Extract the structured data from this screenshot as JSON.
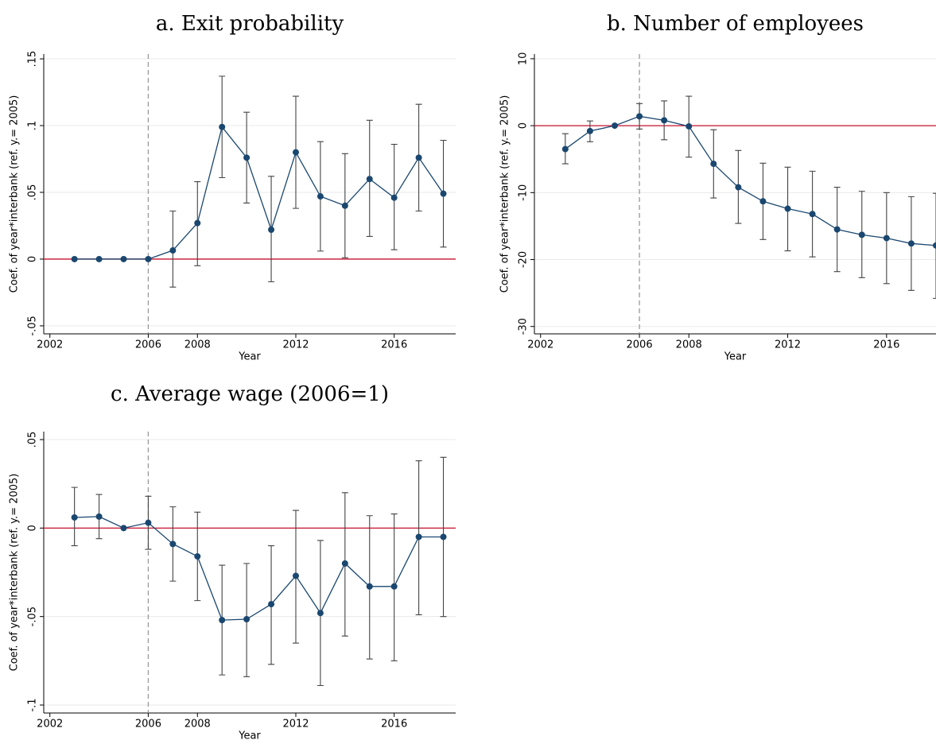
{
  "chart_data": [
    {
      "type": "errorbar",
      "title": "a. Exit probability",
      "x_label": "Year",
      "y_label": "Coef. of year*interbank (ref. y.= 2005)",
      "x": [
        2003,
        2004,
        2005,
        2006,
        2007,
        2008,
        2009,
        2010,
        2011,
        2012,
        2013,
        2014,
        2015,
        2016,
        2017,
        2018
      ],
      "series": [
        {
          "color": "#1a476f",
          "values": [
            0,
            0,
            0,
            0,
            0.0065,
            0.027,
            0.099,
            0.076,
            0.022,
            0.08,
            0.047,
            0.04,
            0.06,
            0.046,
            0.076,
            0.049
          ],
          "lower": [
            0,
            0,
            0,
            0,
            -0.021,
            -0.005,
            0.061,
            0.042,
            -0.017,
            0.038,
            0.006,
            0.001,
            0.017,
            0.007,
            0.036,
            0.009
          ],
          "upper": [
            0,
            0,
            0,
            0,
            0.036,
            0.058,
            0.137,
            0.11,
            0.062,
            0.122,
            0.088,
            0.079,
            0.104,
            0.086,
            0.116,
            0.089
          ]
        }
      ],
      "xlim": [
        2001.75,
        2018.5
      ],
      "xticks": [
        2002,
        2006,
        2008,
        2012,
        2016
      ],
      "ylim": [
        -0.056,
        0.1536
      ],
      "yticks": [
        {
          "value": -0.05,
          "label": "-.05"
        },
        0,
        {
          "value": 0.05,
          "label": ".05"
        },
        {
          "value": 0.1,
          "label": ".1"
        },
        {
          "value": 0.15,
          "label": ".15"
        }
      ],
      "hline": 0,
      "hline_color": "#c8102e",
      "vline": 2006,
      "grid": true
    },
    {
      "type": "errorbar",
      "title": "b. Number of employees",
      "x_label": "Year",
      "y_label": "Coef. of year*interbank (ref. y.= 2005)",
      "x": [
        2003,
        2004,
        2005,
        2006,
        2007,
        2008,
        2009,
        2010,
        2011,
        2012,
        2013,
        2014,
        2015,
        2016,
        2017,
        2018
      ],
      "series": [
        {
          "color": "#1a476f",
          "values": [
            -3.5,
            -0.8,
            0,
            1.4,
            0.8,
            -0.1,
            -5.7,
            -9.2,
            -11.3,
            -12.4,
            -13.2,
            -15.5,
            -16.3,
            -16.8,
            -17.6,
            -17.9
          ],
          "lower": [
            -5.7,
            -2.4,
            0,
            -0.5,
            -2.1,
            -4.7,
            -10.8,
            -14.6,
            -17.0,
            -18.7,
            -19.6,
            -21.8,
            -22.7,
            -23.6,
            -24.6,
            -25.8
          ],
          "upper": [
            -1.2,
            0.7,
            0,
            3.3,
            3.7,
            4.4,
            -0.6,
            -3.7,
            -5.6,
            -6.2,
            -6.8,
            -9.2,
            -9.8,
            -10.0,
            -10.6,
            -10.1
          ]
        }
      ],
      "xlim": [
        2001.75,
        2018
      ],
      "xticks": [
        2002,
        2006,
        2008,
        2012,
        2016
      ],
      "ylim": [
        -31.1,
        10.7
      ],
      "yticks": [
        -30,
        -20,
        -10,
        0,
        10
      ],
      "hline": 0,
      "hline_color": "#c8102e",
      "vline": 2006,
      "grid": true
    },
    {
      "type": "errorbar",
      "title": "c. Average wage (2006=1)",
      "x_label": "Year",
      "y_label": "Coef. of year*interbank (ref. y.= 2005)",
      "x": [
        2003,
        2004,
        2005,
        2006,
        2007,
        2008,
        2009,
        2010,
        2011,
        2012,
        2013,
        2014,
        2015,
        2016,
        2017,
        2018
      ],
      "series": [
        {
          "color": "#1a476f",
          "values": [
            0.006,
            0.0065,
            0,
            0.003,
            -0.009,
            -0.016,
            -0.052,
            -0.0515,
            -0.043,
            -0.027,
            -0.048,
            -0.02,
            -0.033,
            -0.033,
            -0.005,
            -0.005
          ],
          "lower": [
            -0.01,
            -0.006,
            0,
            -0.012,
            -0.03,
            -0.041,
            -0.083,
            -0.084,
            -0.077,
            -0.065,
            -0.089,
            -0.061,
            -0.074,
            -0.075,
            -0.049,
            -0.05
          ],
          "upper": [
            0.023,
            0.019,
            0,
            0.018,
            0.012,
            0.009,
            -0.021,
            -0.02,
            -0.01,
            0.01,
            -0.007,
            0.02,
            0.007,
            0.008,
            0.038,
            0.04
          ]
        }
      ],
      "xlim": [
        2001.75,
        2018.5
      ],
      "xticks": [
        2002,
        2006,
        2008,
        2012,
        2016
      ],
      "ylim": [
        -0.1045,
        0.0545
      ],
      "yticks": [
        {
          "value": -0.1,
          "label": "-.1"
        },
        {
          "value": -0.05,
          "label": "-.05"
        },
        0,
        {
          "value": 0.05,
          "label": ".05"
        }
      ],
      "hline": 0,
      "hline_color": "#c8102e",
      "vline": 2006,
      "grid": true
    }
  ]
}
